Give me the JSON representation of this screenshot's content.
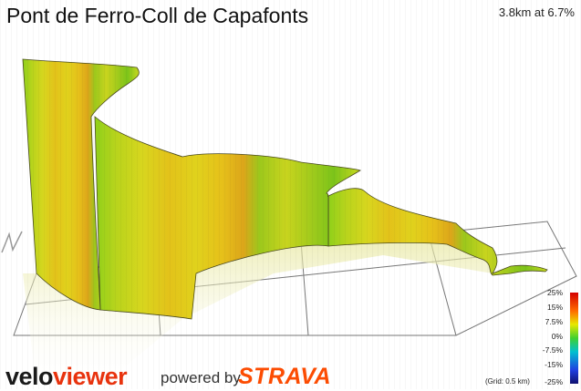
{
  "header": {
    "title": "Pont de Ferro-Coll de Capafonts",
    "stats": "3.8km at 6.7%"
  },
  "legend": {
    "labels": [
      "25%",
      "15%",
      "7.5%",
      "0%",
      "-7.5%",
      "-15%",
      "-25%"
    ],
    "grid_note": "(Grid: 0.5 km)"
  },
  "branding": {
    "velo": "velo",
    "viewer": "viewer",
    "powered_by": "powered by",
    "strava": "STRAVA"
  },
  "colors": {
    "steep": "#e8a81a",
    "moderate": "#d8d81e",
    "gentle": "#9ccc1c",
    "grid": "#777777"
  },
  "icons": [
    "partial-axis-icon"
  ]
}
